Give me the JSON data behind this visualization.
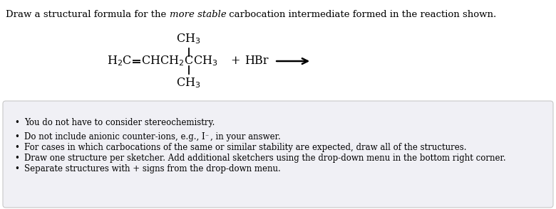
{
  "title_prefix": "Draw a structural formula for the ",
  "title_italic": "more stable",
  "title_suffix": " carbocation intermediate formed in the reaction shown.",
  "title_fontsize": 9.5,
  "mol_fontsize": 11.5,
  "bullet_fontsize": 8.5,
  "background_color": "#ffffff",
  "box_bg_color": "#f0f0f5",
  "box_border_color": "#c8c8c8",
  "bullet_points": [
    "You do not have to consider stereochemistry.",
    "Do not include anionic counter-ions, e.g., I⁻, in your answer.",
    "For cases in which carbocations of the same or similar stability are expected, draw all of the structures.",
    "Draw one structure per sketcher. Add additional sketchers using the drop-down menu in the bottom right corner.",
    "Separate structures with + signs from the drop-down menu."
  ]
}
